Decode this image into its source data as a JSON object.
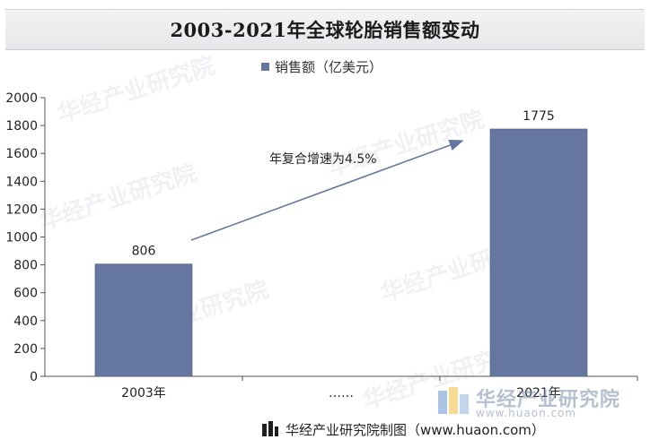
{
  "title": "2003-2021年全球轮胎销售额变动",
  "legend_label": "销售额（亿美元）",
  "annotation": "年复合增速为4.5%",
  "source": "华经产业研究院制图（www.huaon.com）",
  "watermark": "华经产业研究院",
  "watermark_url": "www.huaon.com",
  "colors": {
    "bar": "#6576a1",
    "title_bg": "#e8e9ec",
    "arrow": "#6576a1"
  },
  "chart_data": {
    "type": "bar",
    "categories": [
      "2003年",
      "……",
      "2021年"
    ],
    "values": [
      806,
      null,
      1775
    ],
    "data_labels": [
      "806",
      "",
      "1775"
    ],
    "series": [
      {
        "name": "销售额（亿美元）",
        "values": [
          806,
          null,
          1775
        ]
      }
    ],
    "ylim": [
      0,
      2000
    ],
    "yticks": [
      0,
      200,
      400,
      600,
      800,
      1000,
      1200,
      1400,
      1600,
      1800,
      2000
    ],
    "grid": false,
    "legend_position": "top"
  }
}
